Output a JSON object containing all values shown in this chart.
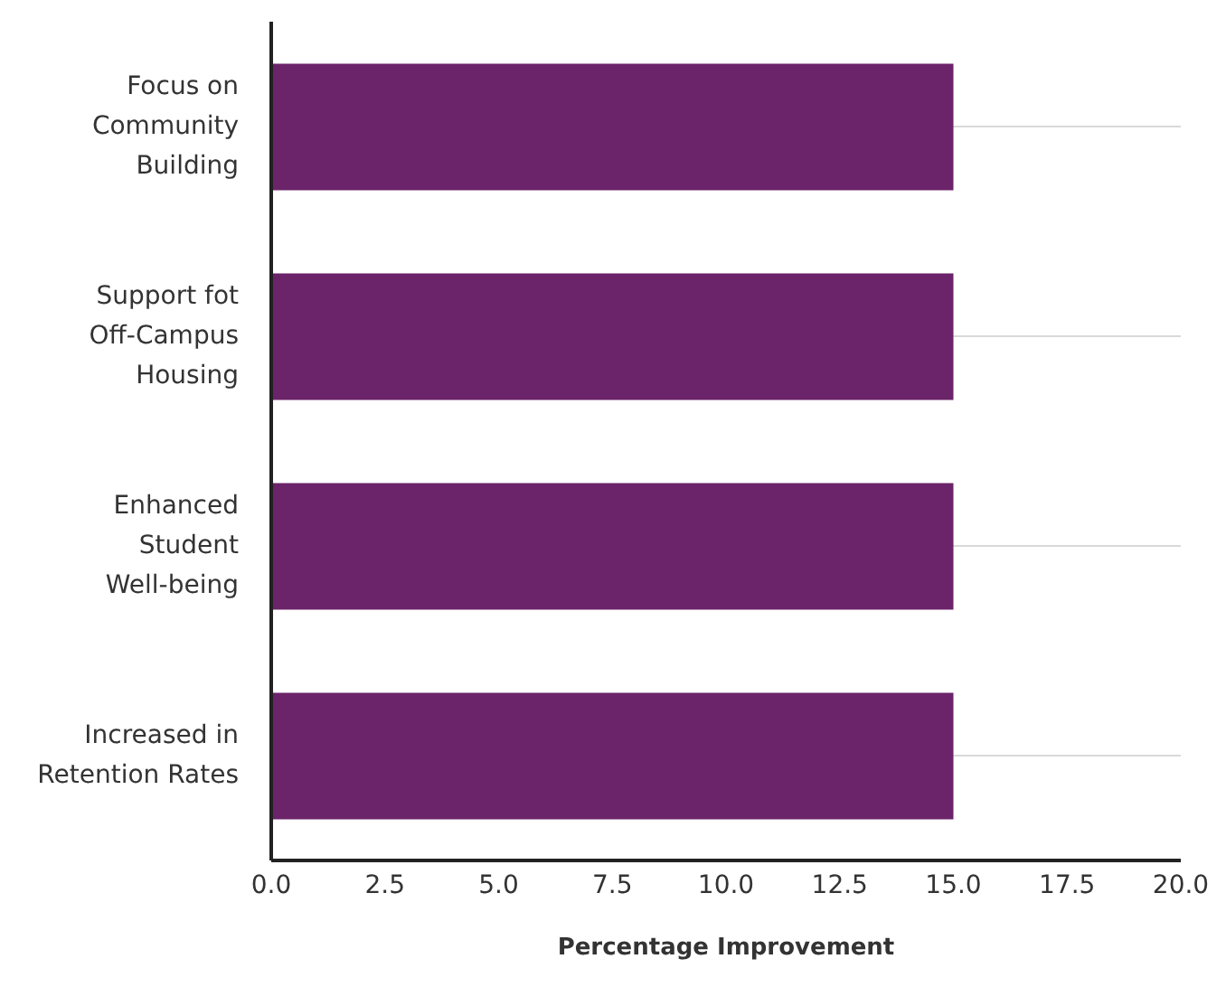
{
  "chart_data": {
    "type": "bar",
    "orientation": "horizontal",
    "xlabel": "Percentage Improvement",
    "categories": [
      "Focus on Community Building",
      "Support fot Off-Campus Housing",
      "Enhanced Student Well-being",
      "Increased in Retention Rates"
    ],
    "values": [
      15,
      15,
      15,
      15
    ],
    "color": "#6b2369",
    "xlim": [
      0,
      20
    ],
    "xticks": [
      {
        "value": 0,
        "label": "0.0"
      },
      {
        "value": 2.5,
        "label": "2.5"
      },
      {
        "value": 5,
        "label": "5.0"
      },
      {
        "value": 7.5,
        "label": "7.5"
      },
      {
        "value": 10,
        "label": "10.0"
      },
      {
        "value": 12.5,
        "label": "12.5"
      },
      {
        "value": 15,
        "label": "15.0"
      },
      {
        "value": 17.5,
        "label": "17.5"
      },
      {
        "value": 20,
        "label": "20.0"
      }
    ],
    "grid": "y"
  }
}
